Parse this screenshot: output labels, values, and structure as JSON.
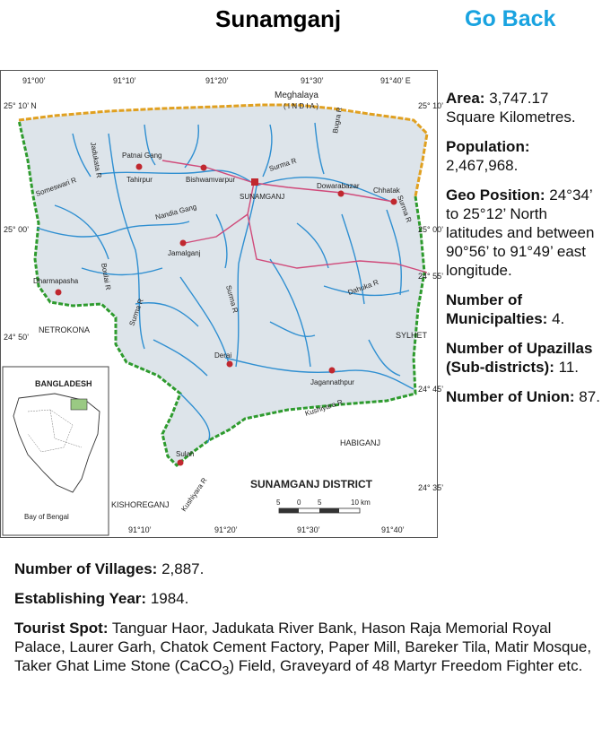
{
  "header": {
    "title": "Sunamganj",
    "go_back": "Go Back"
  },
  "facts": {
    "area_label": "Area:",
    "area_value": "3,747.17 Square Kilometres.",
    "population_label": "Population:",
    "population_value": "2,467,968.",
    "geo_label": "Geo Position:",
    "geo_value": "24°34’ to 25°12’ North latitudes and between 90°56’ to 91°49’ east longitude.",
    "municipalities_label": "Number of Municipalties:",
    "municipalities_value": "4.",
    "upazillas_label": "Number of Upazillas (Sub-districts):",
    "upazillas_value": "11.",
    "union_label": "Number of Union:",
    "union_value": "87.",
    "villages_label": "Number of Villages:",
    "villages_value": "2,887.",
    "establishing_label": "Establishing Year:",
    "establishing_value": "1984.",
    "tourist_label": "Tourist Spot:",
    "tourist_value_pre": "Tanguar Haor, Jadukata River Bank, Hason Raja Memorial Royal Palace, Laurer Garh, Chatok Cement Factory, Paper Mill, Bareker Tila, Matir Mosque, Taker Ghat Lime Stone (CaCO",
    "tourist_sub": "3",
    "tourist_value_post": ") Field, Graveyard of 48 Martyr Freedom Fighter etc."
  },
  "map": {
    "colors": {
      "land": "#dde4ea",
      "river": "#2f8fd1",
      "border_north": "#e0a020",
      "border_district": "#2e9b2e",
      "road": "#d04a7a",
      "town": "#c0282f"
    },
    "top_ticks": [
      "91°00’",
      "91°10’",
      "91°20’",
      "91°30’",
      "91°40’ E"
    ],
    "bottom_ticks": [
      "91°10’",
      "91°20’",
      "91°30’",
      "91°40’"
    ],
    "left_ticks": [
      "25° 10’ N",
      "25° 00’",
      "24° 50’"
    ],
    "right_ticks": [
      "25° 10’",
      "25° 00’",
      "24° 55’",
      "24° 45’",
      "24° 35’"
    ],
    "meghalaya": "Meghalaya",
    "india": "( I N D I A )",
    "towns": [
      "Patnai Gang",
      "Tahirpur",
      "Bishwamvarpur",
      "SUNAMGANJ",
      "Dowarabazar",
      "Chhatak",
      "Jamalganj",
      "Dharmapasha",
      "Derai",
      "Jagannathpur",
      "Sulah"
    ],
    "rivers": [
      "Surma R",
      "Jadukata R",
      "Someswari R",
      "Boulai R",
      "Nandia Gang",
      "Surma R",
      "Bugra R",
      "Surma R",
      "Dahuka R",
      "Kushiyara R",
      "Kushiyara R",
      "Surma R"
    ],
    "neighbors": [
      "NETROKONA",
      "SYLHET",
      "HABIGANJ",
      "KISHOREGANJ"
    ],
    "inset_title": "BANGLADESH",
    "inset_caption": "Bay of Bengal",
    "district_label": "SUNAMGANJ DISTRICT",
    "scale_labels": [
      "5",
      "0",
      "5",
      "10 km"
    ]
  }
}
